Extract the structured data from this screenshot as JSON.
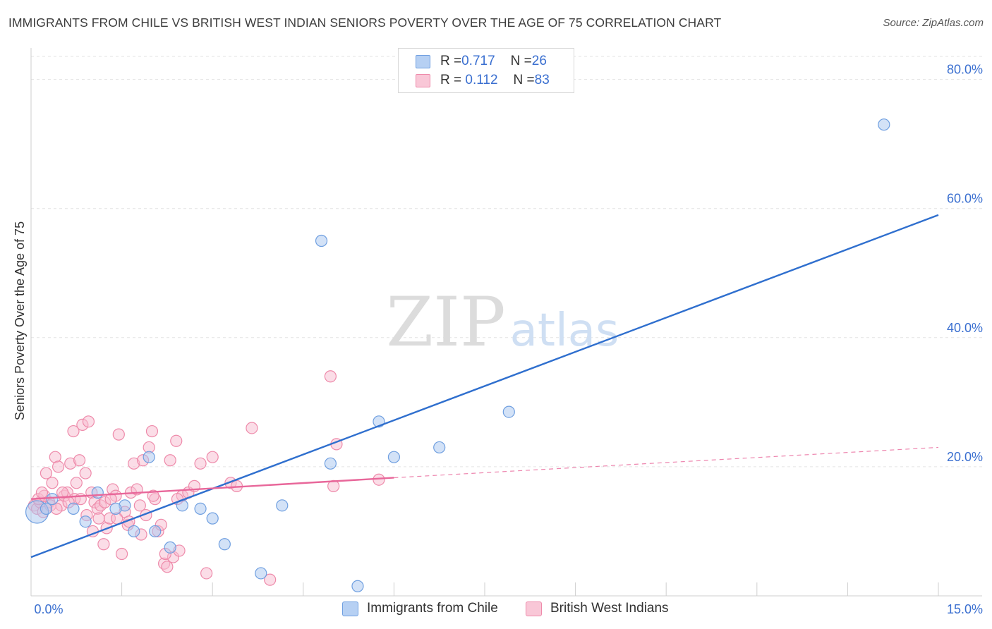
{
  "title": "IMMIGRANTS FROM CHILE VS BRITISH WEST INDIAN SENIORS POVERTY OVER THE AGE OF 75 CORRELATION CHART",
  "source": "Source: ZipAtlas.com",
  "watermark": {
    "zip": "ZIP",
    "atlas": "atlas"
  },
  "legend_top": {
    "rows": [
      {
        "r_label": "R = ",
        "r_value": "0.717",
        "n_label": "N = ",
        "n_value": "26"
      },
      {
        "r_label": "R = ",
        "r_value": " 0.112",
        "n_label": "N = ",
        "n_value": "83"
      }
    ]
  },
  "chart_data": {
    "type": "scatter",
    "title": "IMMIGRANTS FROM CHILE VS BRITISH WEST INDIAN SENIORS POVERTY OVER THE AGE OF 75 CORRELATION CHART",
    "xlabel": "",
    "ylabel": "Seniors Poverty Over the Age of 75",
    "xlim": [
      0,
      15
    ],
    "ylim": [
      0,
      84
    ],
    "x_tick_labels": [
      {
        "value": 0,
        "label": "0.0%"
      },
      {
        "value": 15,
        "label": "15.0%"
      }
    ],
    "y_tick_labels": [
      {
        "value": 20,
        "label": "20.0%"
      },
      {
        "value": 40,
        "label": "40.0%"
      },
      {
        "value": 60,
        "label": "60.0%"
      },
      {
        "value": 80,
        "label": "80.0%"
      }
    ],
    "grid": true,
    "series": [
      {
        "name": "Immigrants from Chile",
        "color": "#a8c6f0",
        "edge_color": "#6f9fe0",
        "line_color": "#2f6fce",
        "r": 0.717,
        "n": 26,
        "trend": {
          "x0": 0,
          "y0": 6,
          "x1": 15,
          "y1": 59
        },
        "points": [
          [
            0.1,
            13.0
          ],
          [
            0.25,
            13.5
          ],
          [
            0.7,
            13.5
          ],
          [
            0.9,
            11.5
          ],
          [
            1.1,
            16.0
          ],
          [
            1.55,
            14.0
          ],
          [
            1.7,
            10.0
          ],
          [
            1.95,
            21.5
          ],
          [
            2.05,
            10.0
          ],
          [
            2.3,
            7.5
          ],
          [
            2.5,
            14.0
          ],
          [
            2.8,
            13.5
          ],
          [
            3.0,
            12.0
          ],
          [
            3.2,
            8.0
          ],
          [
            3.8,
            3.5
          ],
          [
            4.15,
            14.0
          ],
          [
            4.8,
            55.0
          ],
          [
            4.95,
            20.5
          ],
          [
            5.4,
            1.5
          ],
          [
            5.75,
            27.0
          ],
          [
            6.0,
            21.5
          ],
          [
            6.75,
            23.0
          ],
          [
            7.9,
            28.5
          ],
          [
            14.1,
            73.0
          ],
          [
            0.35,
            15.0
          ],
          [
            1.4,
            13.5
          ]
        ]
      },
      {
        "name": "British West Indians",
        "color": "#f8bcd0",
        "edge_color": "#ee8aaa",
        "line_color": "#e8679a",
        "r": 0.112,
        "n": 83,
        "trend": {
          "x0": 0,
          "y0": 15,
          "x1": 6.0,
          "y1": 18.3
        },
        "trend_dashed": {
          "x0": 6.0,
          "y0": 18.3,
          "x1": 15,
          "y1": 23.0
        },
        "points": [
          [
            0.05,
            14.0
          ],
          [
            0.1,
            13.5
          ],
          [
            0.15,
            14.5
          ],
          [
            0.2,
            13.0
          ],
          [
            0.25,
            19.0
          ],
          [
            0.3,
            14.5
          ],
          [
            0.35,
            17.5
          ],
          [
            0.4,
            21.5
          ],
          [
            0.45,
            20.0
          ],
          [
            0.5,
            14.0
          ],
          [
            0.55,
            15.5
          ],
          [
            0.6,
            16.0
          ],
          [
            0.65,
            20.5
          ],
          [
            0.7,
            25.5
          ],
          [
            0.72,
            15.0
          ],
          [
            0.75,
            17.5
          ],
          [
            0.8,
            21.0
          ],
          [
            0.85,
            26.5
          ],
          [
            0.9,
            19.0
          ],
          [
            0.95,
            27.0
          ],
          [
            1.0,
            16.0
          ],
          [
            1.05,
            14.5
          ],
          [
            1.1,
            13.5
          ],
          [
            1.15,
            14.0
          ],
          [
            1.2,
            8.0
          ],
          [
            1.25,
            10.5
          ],
          [
            1.3,
            12.0
          ],
          [
            1.35,
            16.5
          ],
          [
            1.4,
            15.5
          ],
          [
            1.45,
            25.0
          ],
          [
            1.5,
            6.5
          ],
          [
            1.55,
            13.0
          ],
          [
            1.6,
            11.0
          ],
          [
            1.65,
            16.0
          ],
          [
            1.7,
            20.5
          ],
          [
            1.75,
            16.5
          ],
          [
            1.8,
            14.0
          ],
          [
            1.85,
            21.0
          ],
          [
            1.9,
            12.5
          ],
          [
            1.95,
            23.0
          ],
          [
            2.0,
            25.5
          ],
          [
            2.05,
            15.0
          ],
          [
            2.1,
            10.0
          ],
          [
            2.15,
            11.0
          ],
          [
            2.2,
            5.0
          ],
          [
            2.25,
            4.5
          ],
          [
            2.3,
            21.0
          ],
          [
            2.35,
            6.0
          ],
          [
            2.4,
            24.0
          ],
          [
            2.45,
            7.0
          ],
          [
            2.5,
            15.5
          ],
          [
            2.6,
            16.0
          ],
          [
            2.7,
            17.0
          ],
          [
            2.8,
            20.5
          ],
          [
            2.9,
            3.5
          ],
          [
            3.0,
            21.5
          ],
          [
            3.3,
            17.5
          ],
          [
            3.4,
            17.0
          ],
          [
            3.65,
            26.0
          ],
          [
            3.95,
            2.5
          ],
          [
            4.95,
            34.0
          ],
          [
            5.0,
            17.0
          ],
          [
            5.05,
            23.5
          ],
          [
            5.75,
            18.0
          ],
          [
            0.12,
            15.0
          ],
          [
            0.22,
            15.5
          ],
          [
            0.32,
            14.0
          ],
          [
            0.42,
            13.5
          ],
          [
            0.52,
            16.0
          ],
          [
            0.62,
            14.5
          ],
          [
            0.82,
            15.0
          ],
          [
            0.92,
            12.5
          ],
          [
            1.02,
            10.0
          ],
          [
            1.12,
            12.0
          ],
          [
            1.22,
            14.5
          ],
          [
            1.32,
            15.0
          ],
          [
            1.42,
            12.0
          ],
          [
            1.62,
            11.5
          ],
          [
            1.82,
            9.5
          ],
          [
            2.02,
            15.5
          ],
          [
            2.22,
            6.5
          ],
          [
            2.42,
            15.0
          ],
          [
            0.18,
            16.0
          ]
        ]
      }
    ],
    "legend": [
      {
        "label": "Immigrants from Chile",
        "color": "#a8c6f0",
        "edge": "#6f9fe0"
      },
      {
        "label": "British West Indians",
        "color": "#f8bcd0",
        "edge": "#ee8aaa"
      }
    ]
  }
}
